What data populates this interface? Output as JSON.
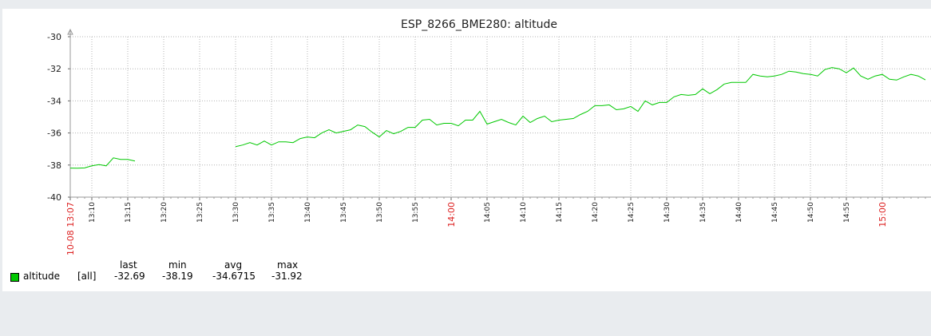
{
  "chart_data": {
    "type": "line",
    "title": "ESP_8266_BME280: altitude",
    "xlabel": "",
    "ylabel": "",
    "ylim": [
      -40,
      -30
    ],
    "yticks": [
      -30,
      -32,
      -34,
      -36,
      -38,
      -40
    ],
    "xlim_minutes_since_13_07": [
      0,
      119
    ],
    "xticks": [
      {
        "label": "10-08 13:07",
        "major": true
      },
      {
        "label": "13:10"
      },
      {
        "label": "13:15"
      },
      {
        "label": "13:20"
      },
      {
        "label": "13:25"
      },
      {
        "label": "13:30"
      },
      {
        "label": "13:35"
      },
      {
        "label": "13:40"
      },
      {
        "label": "13:45"
      },
      {
        "label": "13:50"
      },
      {
        "label": "13:55"
      },
      {
        "label": "14:00",
        "major": true
      },
      {
        "label": "14:05"
      },
      {
        "label": "14:10"
      },
      {
        "label": "14:15"
      },
      {
        "label": "14:20"
      },
      {
        "label": "14:25"
      },
      {
        "label": "14:30"
      },
      {
        "label": "14:35"
      },
      {
        "label": "14:40"
      },
      {
        "label": "14:45"
      },
      {
        "label": "14:50"
      },
      {
        "label": "14:55"
      },
      {
        "label": "15:00",
        "major": true
      }
    ],
    "grid": true,
    "series": [
      {
        "name": "altitude",
        "color": "#00c800",
        "segments": [
          [
            [
              "13:07",
              -38.19
            ],
            [
              "13:08",
              -38.2
            ],
            [
              "13:09",
              -38.18
            ],
            [
              "13:10",
              -38.05
            ],
            [
              "13:11",
              -37.97
            ],
            [
              "13:12",
              -38.05
            ],
            [
              "13:13",
              -37.55
            ],
            [
              "13:14",
              -37.65
            ],
            [
              "13:15",
              -37.65
            ],
            [
              "13:16",
              -37.75
            ]
          ],
          [
            [
              "13:30",
              -36.85
            ],
            [
              "13:31",
              -36.75
            ],
            [
              "13:32",
              -36.6
            ],
            [
              "13:33",
              -36.75
            ],
            [
              "13:34",
              -36.5
            ],
            [
              "13:35",
              -36.75
            ],
            [
              "13:36",
              -36.55
            ],
            [
              "13:37",
              -36.55
            ],
            [
              "13:38",
              -36.6
            ],
            [
              "13:39",
              -36.35
            ],
            [
              "13:40",
              -36.25
            ],
            [
              "13:41",
              -36.3
            ],
            [
              "13:42",
              -36.0
            ],
            [
              "13:43",
              -35.8
            ],
            [
              "13:44",
              -36.0
            ],
            [
              "13:45",
              -35.9
            ],
            [
              "13:46",
              -35.8
            ],
            [
              "13:47",
              -35.5
            ],
            [
              "13:48",
              -35.6
            ],
            [
              "13:49",
              -35.95
            ],
            [
              "13:50",
              -36.25
            ],
            [
              "13:51",
              -35.85
            ],
            [
              "13:52",
              -36.05
            ],
            [
              "13:53",
              -35.9
            ],
            [
              "13:54",
              -35.65
            ],
            [
              "13:55",
              -35.65
            ],
            [
              "13:56",
              -35.2
            ],
            [
              "13:57",
              -35.15
            ],
            [
              "13:58",
              -35.5
            ],
            [
              "13:59",
              -35.4
            ],
            [
              "14:00",
              -35.4
            ],
            [
              "14:01",
              -35.55
            ],
            [
              "14:02",
              -35.2
            ],
            [
              "14:03",
              -35.2
            ],
            [
              "14:04",
              -34.65
            ],
            [
              "14:05",
              -35.45
            ],
            [
              "14:06",
              -35.3
            ],
            [
              "14:07",
              -35.15
            ],
            [
              "14:08",
              -35.35
            ],
            [
              "14:09",
              -35.5
            ],
            [
              "14:10",
              -34.95
            ],
            [
              "14:11",
              -35.35
            ],
            [
              "14:12",
              -35.1
            ],
            [
              "14:13",
              -34.95
            ],
            [
              "14:14",
              -35.3
            ],
            [
              "14:15",
              -35.2
            ],
            [
              "14:16",
              -35.15
            ],
            [
              "14:17",
              -35.1
            ],
            [
              "14:18",
              -34.85
            ],
            [
              "14:19",
              -34.65
            ],
            [
              "14:20",
              -34.3
            ],
            [
              "14:21",
              -34.3
            ],
            [
              "14:22",
              -34.25
            ],
            [
              "14:23",
              -34.55
            ],
            [
              "14:24",
              -34.5
            ],
            [
              "14:25",
              -34.35
            ],
            [
              "14:26",
              -34.65
            ],
            [
              "14:27",
              -34.0
            ],
            [
              "14:28",
              -34.25
            ],
            [
              "14:29",
              -34.1
            ],
            [
              "14:30",
              -34.1
            ],
            [
              "14:31",
              -33.75
            ],
            [
              "14:32",
              -33.6
            ],
            [
              "14:33",
              -33.65
            ],
            [
              "14:34",
              -33.6
            ],
            [
              "14:35",
              -33.25
            ],
            [
              "14:36",
              -33.55
            ],
            [
              "14:37",
              -33.3
            ],
            [
              "14:38",
              -32.95
            ],
            [
              "14:39",
              -32.85
            ],
            [
              "14:40",
              -32.85
            ],
            [
              "14:41",
              -32.85
            ],
            [
              "14:42",
              -32.35
            ],
            [
              "14:43",
              -32.45
            ],
            [
              "14:44",
              -32.5
            ],
            [
              "14:45",
              -32.45
            ],
            [
              "14:46",
              -32.35
            ],
            [
              "14:47",
              -32.15
            ],
            [
              "14:48",
              -32.2
            ],
            [
              "14:49",
              -32.3
            ],
            [
              "14:50",
              -32.35
            ],
            [
              "14:51",
              -32.45
            ],
            [
              "14:52",
              -32.05
            ],
            [
              "14:53",
              -31.92
            ],
            [
              "14:54",
              -32.0
            ],
            [
              "14:55",
              -32.25
            ],
            [
              "14:56",
              -31.95
            ],
            [
              "14:57",
              -32.45
            ],
            [
              "14:58",
              -32.65
            ],
            [
              "14:59",
              -32.45
            ],
            [
              "15:00",
              -32.35
            ],
            [
              "15:01",
              -32.65
            ],
            [
              "15:02",
              -32.7
            ],
            [
              "15:03",
              -32.5
            ],
            [
              "15:04",
              -32.35
            ],
            [
              "15:05",
              -32.45
            ],
            [
              "15:06",
              -32.69
            ]
          ]
        ]
      }
    ]
  },
  "legend": {
    "headers": {
      "last": "last",
      "min": "min",
      "avg": "avg",
      "max": "max"
    },
    "series_name": "altitude",
    "function": "[all]",
    "last": "-32.69",
    "min": "-38.19",
    "avg": "-34.6715",
    "max": "-31.92",
    "swatch_color": "#00c800"
  }
}
